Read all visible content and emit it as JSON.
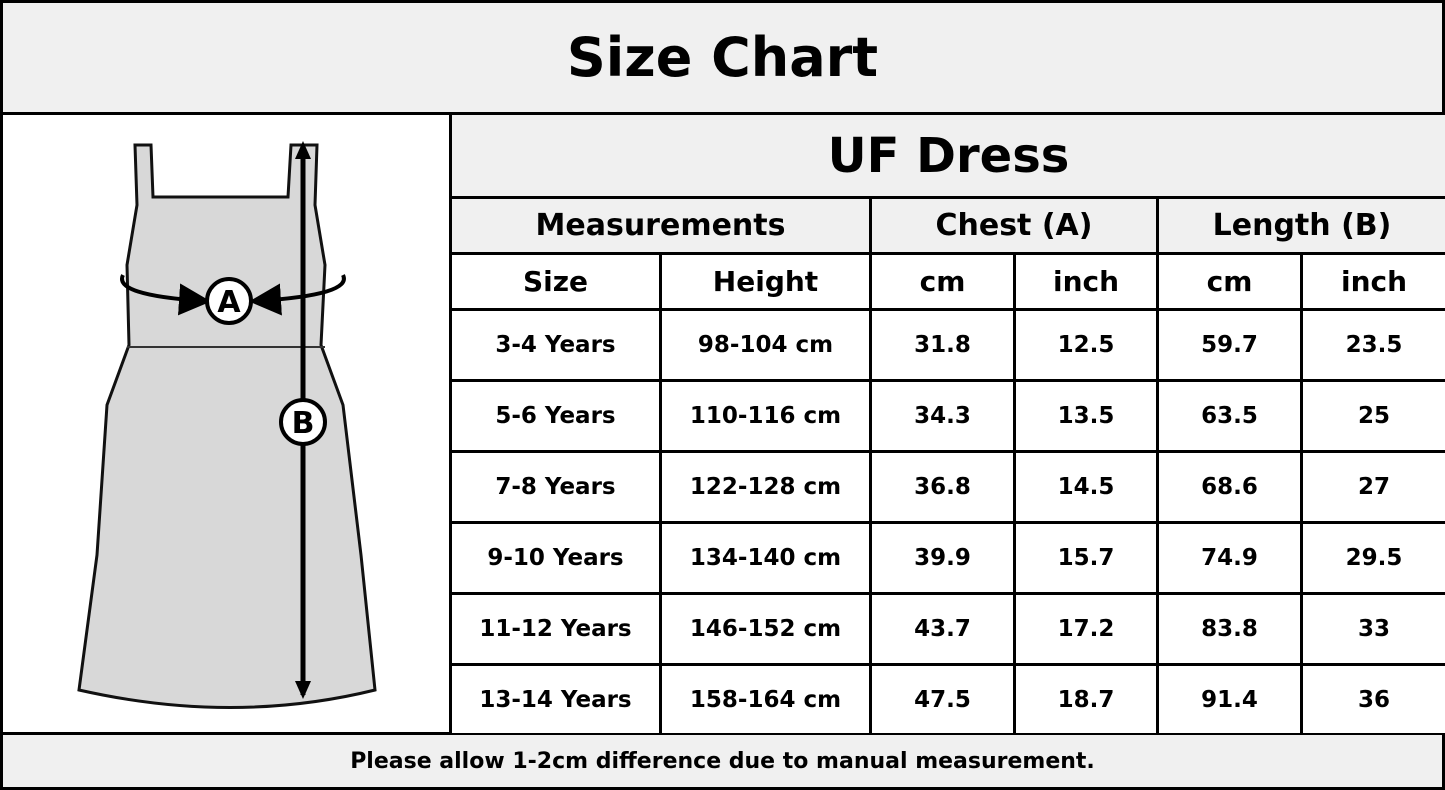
{
  "header": {
    "title": "Size Chart"
  },
  "diagram": {
    "labels": [
      "A",
      "B"
    ]
  },
  "table": {
    "title": "UF Dress",
    "group_headers": [
      "Measurements",
      "Chest (A)",
      "Length (B)"
    ],
    "columns": [
      "Size",
      "Height",
      "cm",
      "inch",
      "cm",
      "inch"
    ],
    "rows": [
      [
        "3-4 Years",
        "98-104 cm",
        "31.8",
        "12.5",
        "59.7",
        "23.5"
      ],
      [
        "5-6 Years",
        "110-116 cm",
        "34.3",
        "13.5",
        "63.5",
        "25"
      ],
      [
        "7-8 Years",
        "122-128 cm",
        "36.8",
        "14.5",
        "68.6",
        "27"
      ],
      [
        "9-10 Years",
        "134-140 cm",
        "39.9",
        "15.7",
        "74.9",
        "29.5"
      ],
      [
        "11-12 Years",
        "146-152 cm",
        "43.7",
        "17.2",
        "83.8",
        "33"
      ],
      [
        "13-14 Years",
        "158-164 cm",
        "47.5",
        "18.7",
        "91.4",
        "36"
      ]
    ]
  },
  "footer": {
    "note": "Please allow 1-2cm difference due to manual measurement."
  }
}
